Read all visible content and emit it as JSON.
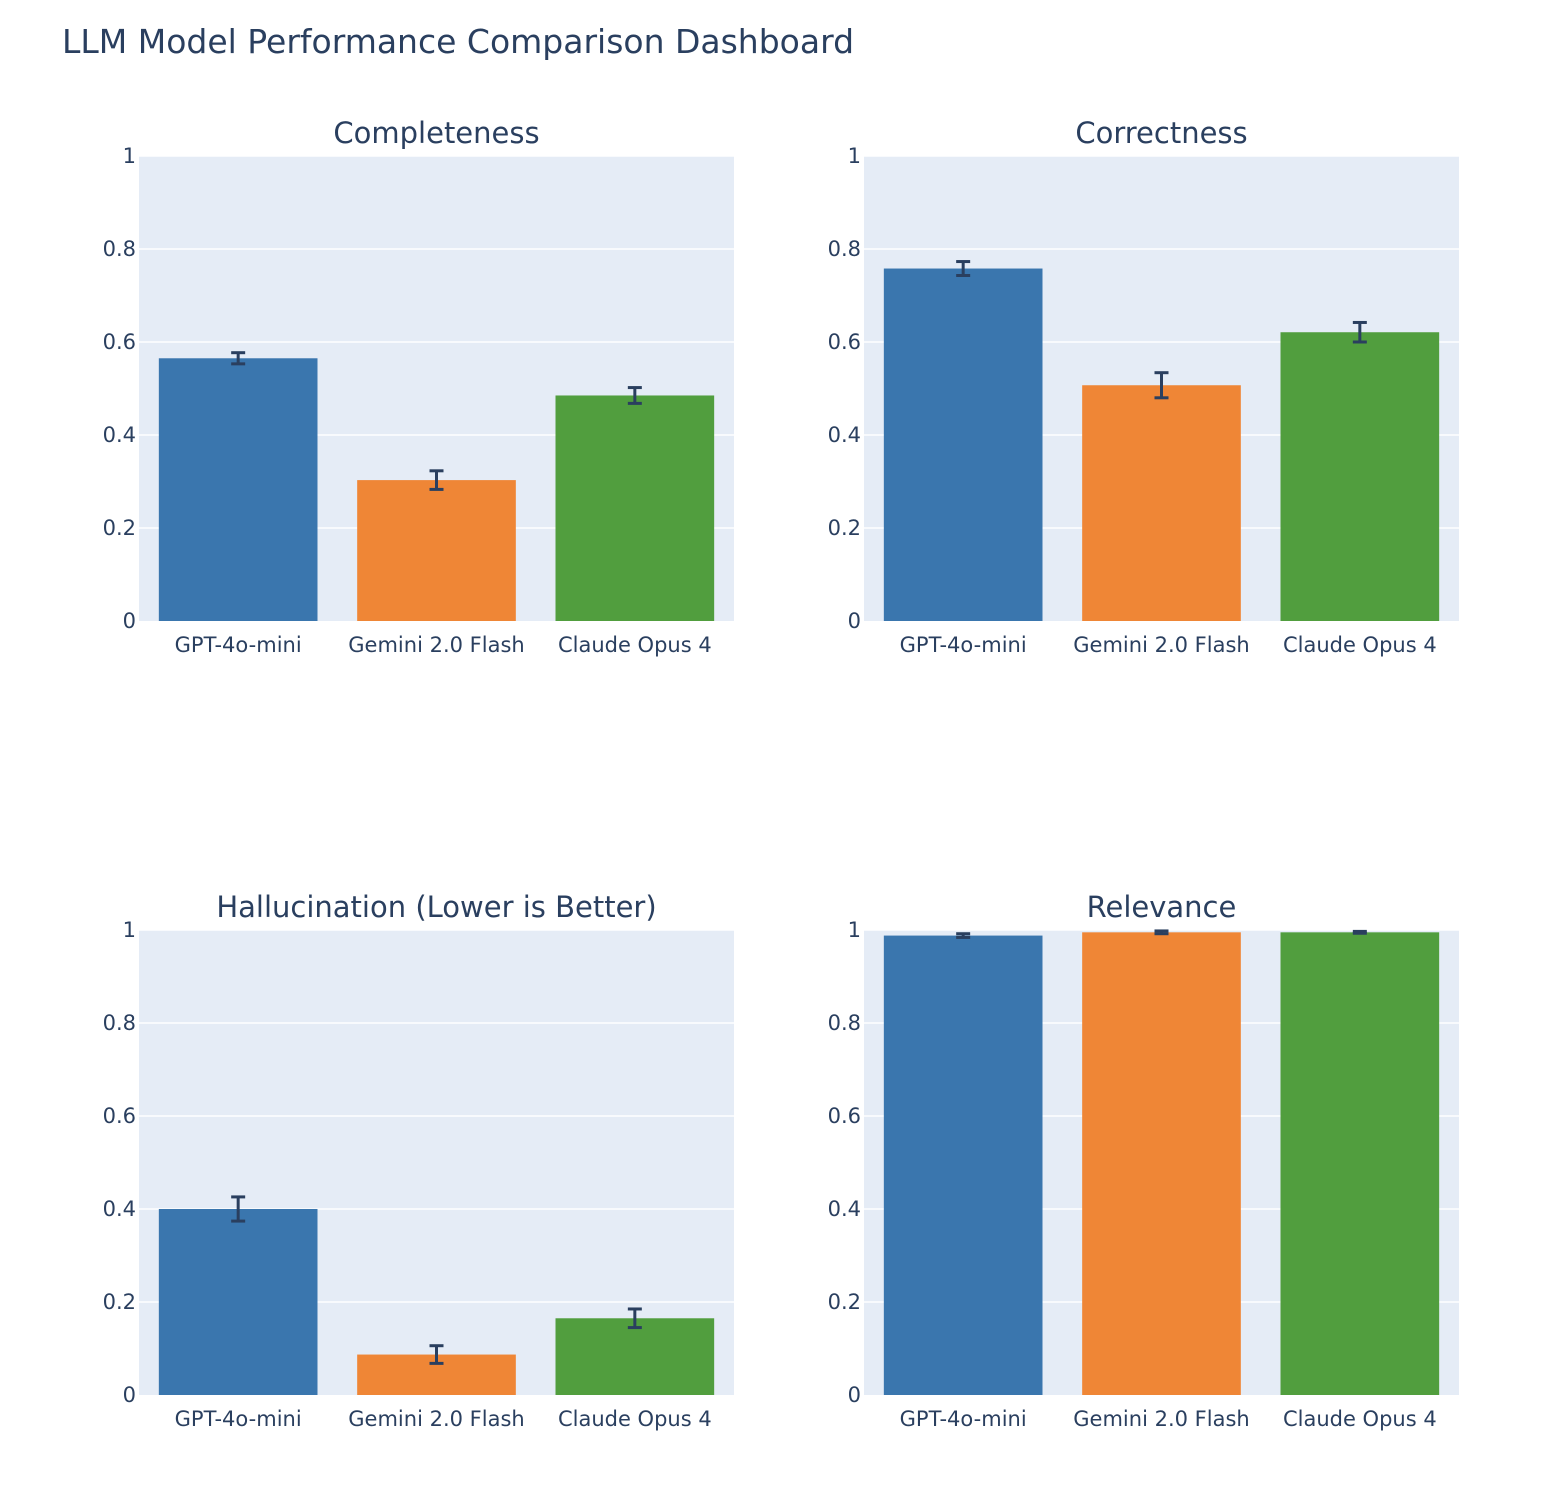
{
  "title": "LLM Model Performance Comparison Dashboard",
  "colors": {
    "plot_background": "#e5ecf6",
    "gridline": "#ffffff",
    "error_bar": "#2a3f5f",
    "text": "#2a3f5f",
    "GPT-4o-mini": "#3a76ae",
    "Gemini 2.0 Flash": "#ef8636",
    "Claude Opus 4": "#519e3e"
  },
  "chart_data": [
    {
      "type": "bar",
      "title": "Completeness",
      "categories": [
        "GPT-4o-mini",
        "Gemini 2.0 Flash",
        "Claude Opus 4"
      ],
      "values": [
        0.565,
        0.303,
        0.485
      ],
      "error": [
        0.012,
        0.02,
        0.017
      ],
      "ylim": [
        0,
        1
      ],
      "yticks": [
        0,
        0.2,
        0.4,
        0.6,
        0.8,
        1
      ],
      "ytick_labels": [
        "0",
        "0.2",
        "0.4",
        "0.6",
        "0.8",
        "1"
      ],
      "grid": true
    },
    {
      "type": "bar",
      "title": "Correctness",
      "categories": [
        "GPT-4o-mini",
        "Gemini 2.0 Flash",
        "Claude Opus 4"
      ],
      "values": [
        0.758,
        0.507,
        0.621
      ],
      "error": [
        0.015,
        0.027,
        0.021
      ],
      "ylim": [
        0,
        1
      ],
      "yticks": [
        0,
        0.2,
        0.4,
        0.6,
        0.8,
        1
      ],
      "ytick_labels": [
        "0",
        "0.2",
        "0.4",
        "0.6",
        "0.8",
        "1"
      ],
      "grid": true
    },
    {
      "type": "bar",
      "title": "Hallucination (Lower is Better)",
      "categories": [
        "GPT-4o-mini",
        "Gemini 2.0 Flash",
        "Claude Opus 4"
      ],
      "values": [
        0.4,
        0.087,
        0.165
      ],
      "error": [
        0.026,
        0.019,
        0.02
      ],
      "ylim": [
        0,
        1
      ],
      "yticks": [
        0,
        0.2,
        0.4,
        0.6,
        0.8,
        1
      ],
      "ytick_labels": [
        "0",
        "0.2",
        "0.4",
        "0.6",
        "0.8",
        "1"
      ],
      "grid": true
    },
    {
      "type": "bar",
      "title": "Relevance",
      "categories": [
        "GPT-4o-mini",
        "Gemini 2.0 Flash",
        "Claude Opus 4"
      ],
      "values": [
        0.988,
        0.995,
        0.995
      ],
      "error": [
        0.004,
        0.003,
        0.002
      ],
      "ylim": [
        0,
        1
      ],
      "yticks": [
        0,
        0.2,
        0.4,
        0.6,
        0.8,
        1
      ],
      "ytick_labels": [
        "0",
        "0.2",
        "0.4",
        "0.6",
        "0.8",
        "1"
      ],
      "grid": true
    }
  ]
}
